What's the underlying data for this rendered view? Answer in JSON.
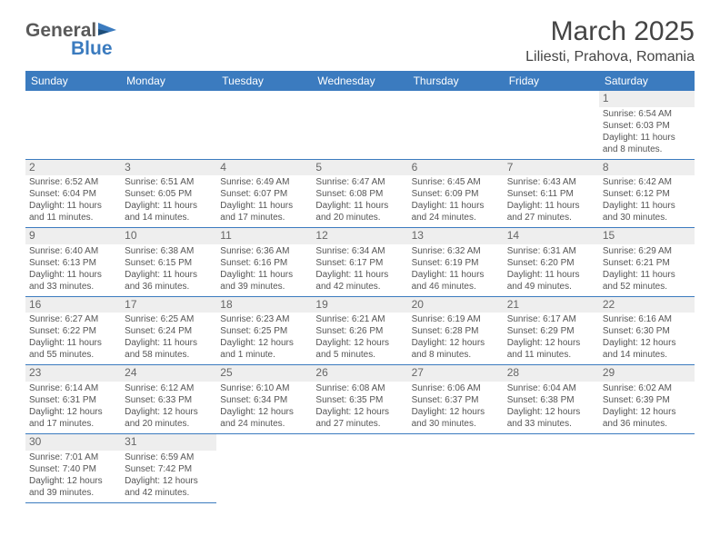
{
  "logo": {
    "part1": "General",
    "part2": "Blue"
  },
  "title": "March 2025",
  "location": "Liliesti, Prahova, Romania",
  "colors": {
    "accent": "#3b7bbf",
    "text": "#555555",
    "heading": "#444444",
    "daybg": "#eeeeee"
  },
  "daysOfWeek": [
    "Sunday",
    "Monday",
    "Tuesday",
    "Wednesday",
    "Thursday",
    "Friday",
    "Saturday"
  ],
  "weeks": [
    [
      null,
      null,
      null,
      null,
      null,
      null,
      {
        "n": "1",
        "sr": "Sunrise: 6:54 AM",
        "ss": "Sunset: 6:03 PM",
        "dl1": "Daylight: 11 hours",
        "dl2": "and 8 minutes."
      }
    ],
    [
      {
        "n": "2",
        "sr": "Sunrise: 6:52 AM",
        "ss": "Sunset: 6:04 PM",
        "dl1": "Daylight: 11 hours",
        "dl2": "and 11 minutes."
      },
      {
        "n": "3",
        "sr": "Sunrise: 6:51 AM",
        "ss": "Sunset: 6:05 PM",
        "dl1": "Daylight: 11 hours",
        "dl2": "and 14 minutes."
      },
      {
        "n": "4",
        "sr": "Sunrise: 6:49 AM",
        "ss": "Sunset: 6:07 PM",
        "dl1": "Daylight: 11 hours",
        "dl2": "and 17 minutes."
      },
      {
        "n": "5",
        "sr": "Sunrise: 6:47 AM",
        "ss": "Sunset: 6:08 PM",
        "dl1": "Daylight: 11 hours",
        "dl2": "and 20 minutes."
      },
      {
        "n": "6",
        "sr": "Sunrise: 6:45 AM",
        "ss": "Sunset: 6:09 PM",
        "dl1": "Daylight: 11 hours",
        "dl2": "and 24 minutes."
      },
      {
        "n": "7",
        "sr": "Sunrise: 6:43 AM",
        "ss": "Sunset: 6:11 PM",
        "dl1": "Daylight: 11 hours",
        "dl2": "and 27 minutes."
      },
      {
        "n": "8",
        "sr": "Sunrise: 6:42 AM",
        "ss": "Sunset: 6:12 PM",
        "dl1": "Daylight: 11 hours",
        "dl2": "and 30 minutes."
      }
    ],
    [
      {
        "n": "9",
        "sr": "Sunrise: 6:40 AM",
        "ss": "Sunset: 6:13 PM",
        "dl1": "Daylight: 11 hours",
        "dl2": "and 33 minutes."
      },
      {
        "n": "10",
        "sr": "Sunrise: 6:38 AM",
        "ss": "Sunset: 6:15 PM",
        "dl1": "Daylight: 11 hours",
        "dl2": "and 36 minutes."
      },
      {
        "n": "11",
        "sr": "Sunrise: 6:36 AM",
        "ss": "Sunset: 6:16 PM",
        "dl1": "Daylight: 11 hours",
        "dl2": "and 39 minutes."
      },
      {
        "n": "12",
        "sr": "Sunrise: 6:34 AM",
        "ss": "Sunset: 6:17 PM",
        "dl1": "Daylight: 11 hours",
        "dl2": "and 42 minutes."
      },
      {
        "n": "13",
        "sr": "Sunrise: 6:32 AM",
        "ss": "Sunset: 6:19 PM",
        "dl1": "Daylight: 11 hours",
        "dl2": "and 46 minutes."
      },
      {
        "n": "14",
        "sr": "Sunrise: 6:31 AM",
        "ss": "Sunset: 6:20 PM",
        "dl1": "Daylight: 11 hours",
        "dl2": "and 49 minutes."
      },
      {
        "n": "15",
        "sr": "Sunrise: 6:29 AM",
        "ss": "Sunset: 6:21 PM",
        "dl1": "Daylight: 11 hours",
        "dl2": "and 52 minutes."
      }
    ],
    [
      {
        "n": "16",
        "sr": "Sunrise: 6:27 AM",
        "ss": "Sunset: 6:22 PM",
        "dl1": "Daylight: 11 hours",
        "dl2": "and 55 minutes."
      },
      {
        "n": "17",
        "sr": "Sunrise: 6:25 AM",
        "ss": "Sunset: 6:24 PM",
        "dl1": "Daylight: 11 hours",
        "dl2": "and 58 minutes."
      },
      {
        "n": "18",
        "sr": "Sunrise: 6:23 AM",
        "ss": "Sunset: 6:25 PM",
        "dl1": "Daylight: 12 hours",
        "dl2": "and 1 minute."
      },
      {
        "n": "19",
        "sr": "Sunrise: 6:21 AM",
        "ss": "Sunset: 6:26 PM",
        "dl1": "Daylight: 12 hours",
        "dl2": "and 5 minutes."
      },
      {
        "n": "20",
        "sr": "Sunrise: 6:19 AM",
        "ss": "Sunset: 6:28 PM",
        "dl1": "Daylight: 12 hours",
        "dl2": "and 8 minutes."
      },
      {
        "n": "21",
        "sr": "Sunrise: 6:17 AM",
        "ss": "Sunset: 6:29 PM",
        "dl1": "Daylight: 12 hours",
        "dl2": "and 11 minutes."
      },
      {
        "n": "22",
        "sr": "Sunrise: 6:16 AM",
        "ss": "Sunset: 6:30 PM",
        "dl1": "Daylight: 12 hours",
        "dl2": "and 14 minutes."
      }
    ],
    [
      {
        "n": "23",
        "sr": "Sunrise: 6:14 AM",
        "ss": "Sunset: 6:31 PM",
        "dl1": "Daylight: 12 hours",
        "dl2": "and 17 minutes."
      },
      {
        "n": "24",
        "sr": "Sunrise: 6:12 AM",
        "ss": "Sunset: 6:33 PM",
        "dl1": "Daylight: 12 hours",
        "dl2": "and 20 minutes."
      },
      {
        "n": "25",
        "sr": "Sunrise: 6:10 AM",
        "ss": "Sunset: 6:34 PM",
        "dl1": "Daylight: 12 hours",
        "dl2": "and 24 minutes."
      },
      {
        "n": "26",
        "sr": "Sunrise: 6:08 AM",
        "ss": "Sunset: 6:35 PM",
        "dl1": "Daylight: 12 hours",
        "dl2": "and 27 minutes."
      },
      {
        "n": "27",
        "sr": "Sunrise: 6:06 AM",
        "ss": "Sunset: 6:37 PM",
        "dl1": "Daylight: 12 hours",
        "dl2": "and 30 minutes."
      },
      {
        "n": "28",
        "sr": "Sunrise: 6:04 AM",
        "ss": "Sunset: 6:38 PM",
        "dl1": "Daylight: 12 hours",
        "dl2": "and 33 minutes."
      },
      {
        "n": "29",
        "sr": "Sunrise: 6:02 AM",
        "ss": "Sunset: 6:39 PM",
        "dl1": "Daylight: 12 hours",
        "dl2": "and 36 minutes."
      }
    ],
    [
      {
        "n": "30",
        "sr": "Sunrise: 7:01 AM",
        "ss": "Sunset: 7:40 PM",
        "dl1": "Daylight: 12 hours",
        "dl2": "and 39 minutes."
      },
      {
        "n": "31",
        "sr": "Sunrise: 6:59 AM",
        "ss": "Sunset: 7:42 PM",
        "dl1": "Daylight: 12 hours",
        "dl2": "and 42 minutes."
      },
      null,
      null,
      null,
      null,
      null
    ]
  ]
}
